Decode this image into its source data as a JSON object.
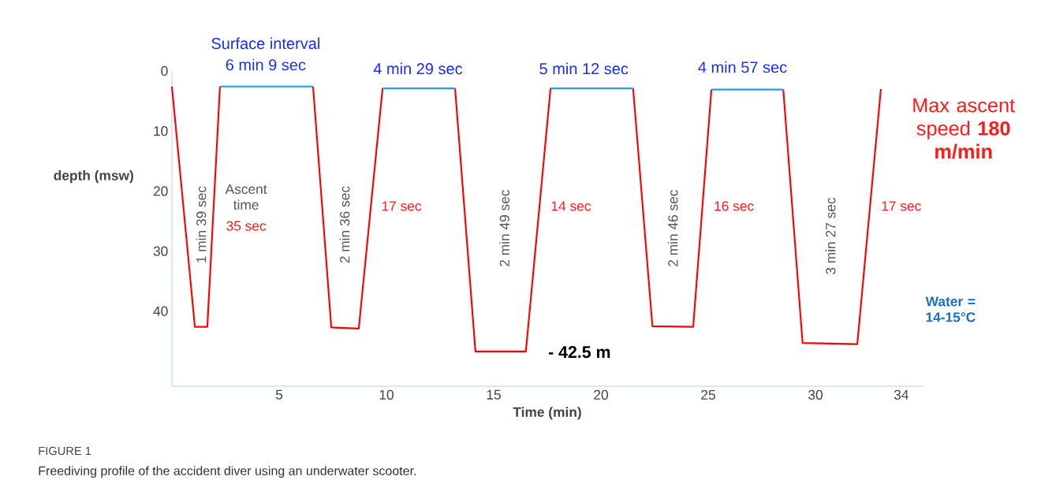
{
  "chart_data": {
    "type": "line",
    "xlabel": "Time (min)",
    "ylabel": "depth (msw)",
    "xlim": [
      0,
      35
    ],
    "ylim": [
      52.5,
      0
    ],
    "xticks": [
      5,
      10,
      15,
      20,
      25,
      30,
      34
    ],
    "yticks": [
      0,
      10,
      20,
      30,
      40
    ],
    "series": [
      {
        "color": "#ff0000",
        "x": [
          0,
          1.07,
          1.65,
          2.24,
          null,
          6.58,
          7.43,
          8.71,
          9.82,
          null,
          13.2,
          14.15,
          16.5,
          17.65,
          null,
          21.5,
          22.4,
          24.3,
          25.15,
          null,
          28.5,
          29.4,
          31.95,
          33.05
        ],
        "values": [
          2.6,
          42.6,
          42.6,
          2.6,
          null,
          2.6,
          42.7,
          42.9,
          2.9,
          null,
          2.9,
          46.7,
          46.7,
          2.9,
          null,
          2.9,
          42.5,
          42.6,
          3.1,
          null,
          3.1,
          45.3,
          45.5,
          3.0
        ]
      },
      {
        "color": "#1ea0e6",
        "x": [
          2.24,
          6.58,
          null,
          9.82,
          13.2,
          null,
          17.65,
          21.5,
          null,
          25.15,
          28.5
        ],
        "values": [
          2.6,
          2.6,
          null,
          2.9,
          2.9,
          null,
          2.9,
          2.9,
          null,
          3.1,
          3.1
        ]
      }
    ],
    "annotations": [
      "Surface interval",
      "6 min 9 sec",
      "4 min 29 sec",
      "5 min 12 sec",
      "4 min 57 sec",
      "1 min 39 sec",
      "Ascent time",
      "35 sec",
      "2 min 36 sec",
      "17 sec",
      "2 min 49 sec",
      "14 sec",
      "2 min 46 sec",
      "16 sec",
      "3 min 27 sec",
      "17 sec",
      "Max ascent speed **180 m/min**",
      "Water = 14-15°C",
      "- 42.5 m",
      "FIGURE 1",
      "Freediving profile of the accident diver using an underwater scooter."
    ]
  }
}
